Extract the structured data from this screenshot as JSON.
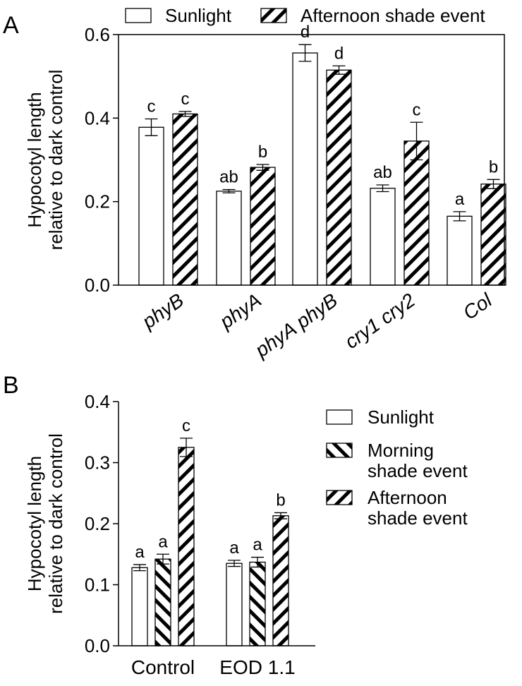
{
  "chart_data": [
    {
      "panel_label": "A",
      "type": "bar",
      "ylabel_lines": [
        "Hypocotyl length",
        "relative to dark control"
      ],
      "ylim": [
        0,
        0.6
      ],
      "yticks": [
        "0.0",
        "0.2",
        "0.4",
        "0.6"
      ],
      "ytick_values": [
        0,
        0.2,
        0.4,
        0.6
      ],
      "categories": [
        "phyB",
        "phyA",
        "phyA phyB",
        "cry1 cry2",
        "Col"
      ],
      "legend_position": "top",
      "series": [
        {
          "name": "Sunlight",
          "pattern": "none",
          "values": [
            0.378,
            0.225,
            0.556,
            0.232,
            0.165
          ],
          "errors": [
            0.02,
            0.004,
            0.02,
            0.008,
            0.011
          ],
          "letters": [
            "c",
            "ab",
            "d",
            "ab",
            "a"
          ]
        },
        {
          "name": "Afternoon shade event",
          "pattern": "backslash",
          "values": [
            0.41,
            0.282,
            0.515,
            0.345,
            0.242
          ],
          "errors": [
            0.006,
            0.007,
            0.01,
            0.045,
            0.011
          ],
          "letters": [
            "c",
            "b",
            "d",
            "c",
            "b"
          ]
        }
      ]
    },
    {
      "panel_label": "B",
      "type": "bar",
      "ylabel_lines": [
        "Hypocotyl length",
        "relative to dark control"
      ],
      "ylim": [
        0,
        0.4
      ],
      "yticks": [
        "0.0",
        "0.1",
        "0.2",
        "0.3",
        "0.4"
      ],
      "ytick_values": [
        0,
        0.1,
        0.2,
        0.3,
        0.4
      ],
      "categories": [
        "Control",
        "EOD 1.1"
      ],
      "legend_position": "right",
      "series": [
        {
          "name_lines": [
            "Sunlight"
          ],
          "pattern": "none",
          "values": [
            0.128,
            0.135
          ],
          "errors": [
            0.005,
            0.005
          ],
          "letters": [
            "a",
            "a"
          ]
        },
        {
          "name_lines": [
            "Morning",
            "shade event"
          ],
          "pattern": "slash",
          "values": [
            0.142,
            0.137
          ],
          "errors": [
            0.008,
            0.008
          ],
          "letters": [
            "a",
            "a"
          ]
        },
        {
          "name_lines": [
            "Afternoon",
            "shade event"
          ],
          "pattern": "backslash",
          "values": [
            0.325,
            0.213
          ],
          "errors": [
            0.015,
            0.005
          ],
          "letters": [
            "c",
            "b"
          ]
        }
      ]
    }
  ]
}
